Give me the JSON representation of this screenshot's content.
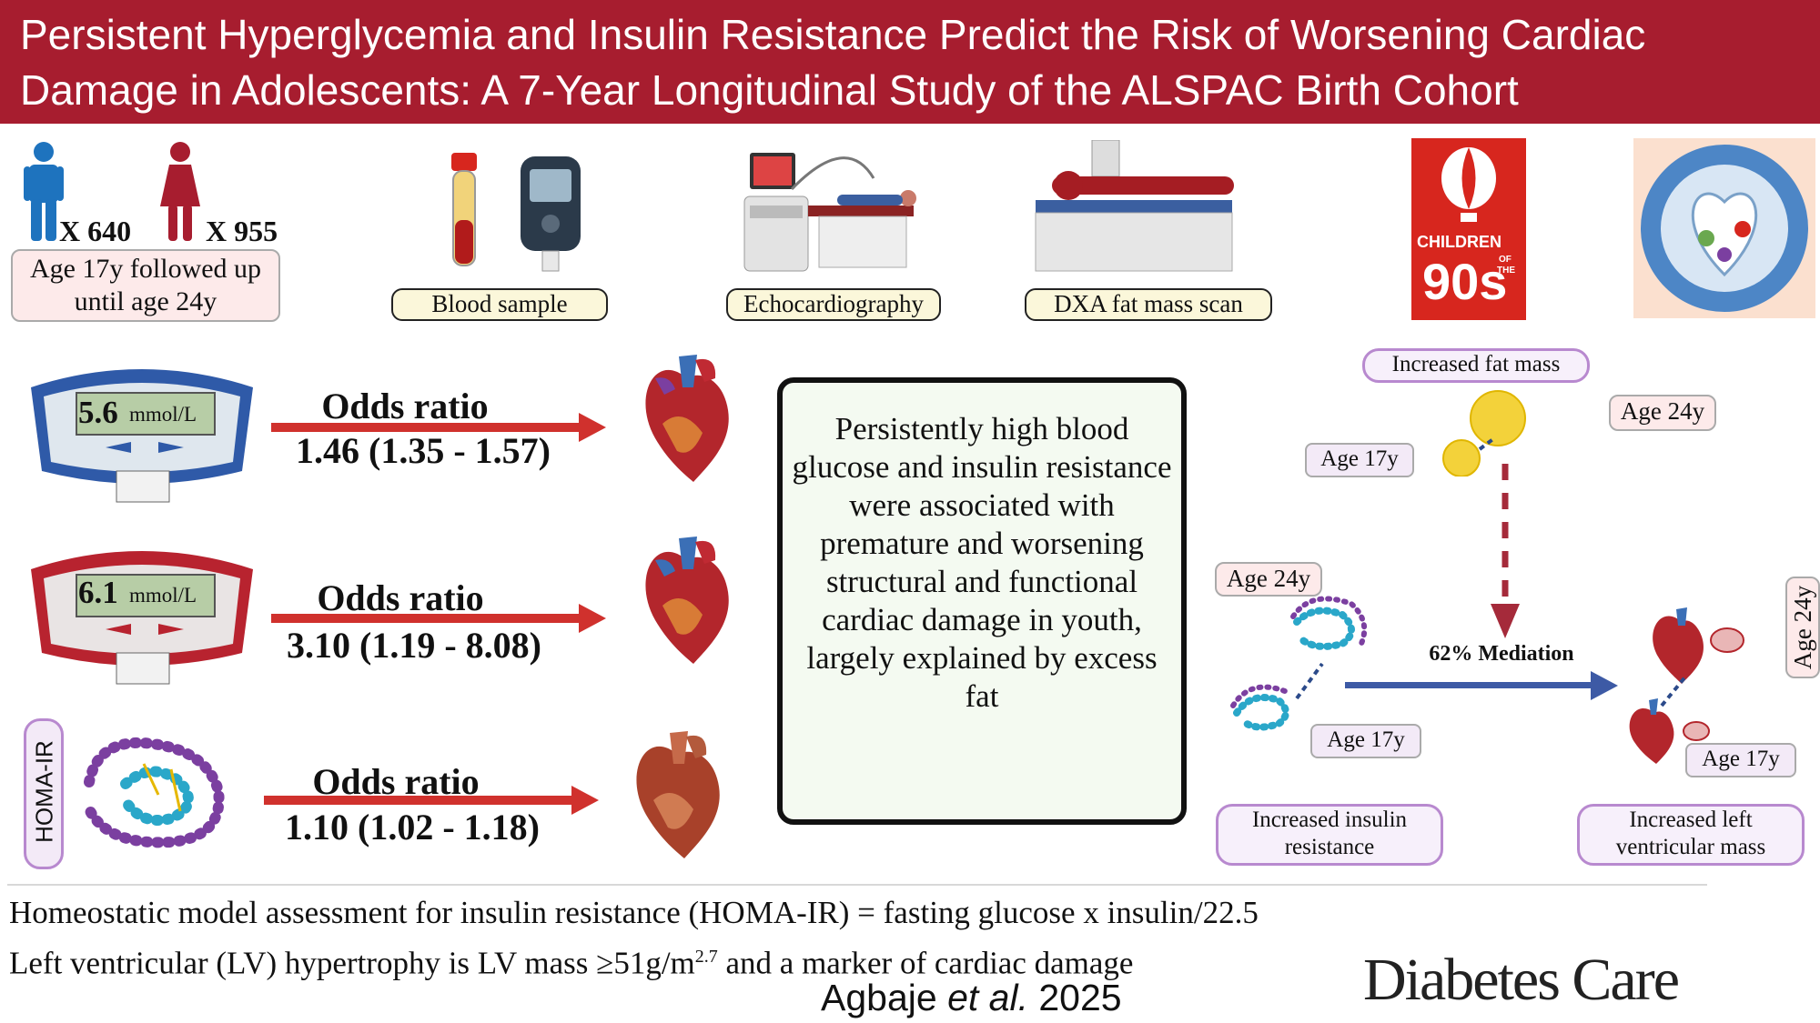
{
  "header": {
    "title": "Persistent Hyperglycemia and Insulin Resistance Predict the Risk of Worsening Cardiac Damage in Adolescents: A 7-Year Longitudinal Study of the ALSPAC Birth Cohort"
  },
  "cohort": {
    "boys_count": "X 640",
    "girls_count": "X 955",
    "follow_up": "Age 17y followed up until age 24y"
  },
  "methods": {
    "blood_sample": "Blood sample",
    "echo": "Echocardiography",
    "dxa": "DXA fat mass scan"
  },
  "logos": {
    "children_line1": "CHILDREN",
    "children_of": "OF",
    "children_the": "THE",
    "children_90s": "90s"
  },
  "rows": [
    {
      "meter_value": "5.6",
      "unit": "mmol/L",
      "or_label": "Odds ratio",
      "or_value": "1.46 (1.35 - 1.57)"
    },
    {
      "meter_value": "6.1",
      "unit": "mmol/L",
      "or_label": "Odds ratio",
      "or_value": "3.10 (1.19 - 8.08)"
    },
    {
      "homa_label": "HOMA-IR",
      "or_label": "Odds ratio",
      "or_value": "1.10 (1.02 - 1.18)"
    }
  ],
  "center": {
    "text": "Persistently high blood glucose and insulin resistance were associated with premature and worsening structural and functional cardiac damage in youth, largely explained by excess fat"
  },
  "mediation": {
    "fat_mass": "Increased fat mass",
    "age24_fat": "Age 24y",
    "age17_fat": "Age 17y",
    "age24_ins": "Age 24y",
    "age17_ins": "Age 17y",
    "age24_lv": "Age 24y",
    "age17_lv": "Age 17y",
    "mediation_label": "62% Mediation",
    "insulin_label": "Increased insulin resistance",
    "lv_label": "Increased left ventricular mass"
  },
  "footer": {
    "homa_def": "Homeostatic model assessment for insulin resistance (HOMA-IR) = fasting glucose x insulin/22.5",
    "lv_def_pre": "Left ventricular (LV) hypertrophy is LV mass ≥51g/m",
    "lv_def_sup": "2.7",
    "lv_def_post": " and a marker of cardiac damage",
    "author": "Agbaje",
    "etal": "et al.",
    "year": "2025",
    "journal": "Diabetes Care"
  },
  "colors": {
    "header": "#a71d2f",
    "arrow": "#d0312d",
    "mediation_arrow": "#3d5aa5",
    "dashed_arrow": "#a52a3a"
  }
}
